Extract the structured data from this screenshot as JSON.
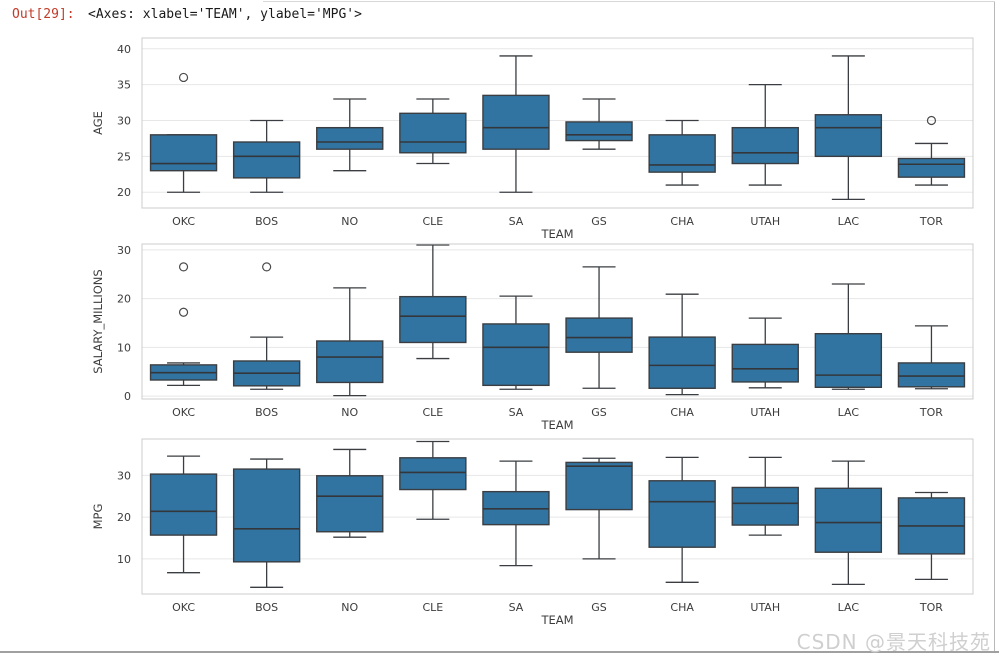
{
  "prompt": "Out[29]:",
  "repr": "<Axes: xlabel='TEAM', ylabel='MPG'>",
  "watermark": "CSDN @景天科技苑",
  "colors": {
    "box_fill": "#3274a1",
    "box_edge": "#3a3e42",
    "median": "#33373b",
    "whisker": "#3a3e42",
    "grid": "#e7e7e7",
    "axes_border": "#cccccc",
    "tick_text": "#3c3c3c",
    "prompt_red": "#c13b28",
    "watermark_gray": "#cfcfcf",
    "outlier_edge": "#4a4a4a"
  },
  "chart_data": [
    {
      "type": "box",
      "ylabel": "AGE",
      "xlabel": "TEAM",
      "categories": [
        "OKC",
        "BOS",
        "NO",
        "CLE",
        "SA",
        "GS",
        "CHA",
        "UTAH",
        "LAC",
        "TOR"
      ],
      "yticks": [
        20,
        25,
        30,
        35,
        40
      ],
      "ylim": [
        17.8,
        41.5
      ],
      "grid": true,
      "boxes": [
        {
          "team": "OKC",
          "whislo": 20,
          "q1": 23,
          "med": 24,
          "q3": 28,
          "whishi": 28,
          "outliers": [
            36
          ]
        },
        {
          "team": "BOS",
          "whislo": 20,
          "q1": 22,
          "med": 25,
          "q3": 27,
          "whishi": 30,
          "outliers": []
        },
        {
          "team": "NO",
          "whislo": 23,
          "q1": 26,
          "med": 27,
          "q3": 29,
          "whishi": 33,
          "outliers": []
        },
        {
          "team": "CLE",
          "whislo": 24,
          "q1": 25.5,
          "med": 27,
          "q3": 31,
          "whishi": 33,
          "outliers": []
        },
        {
          "team": "SA",
          "whislo": 20,
          "q1": 26,
          "med": 29,
          "q3": 33.5,
          "whishi": 39,
          "outliers": []
        },
        {
          "team": "GS",
          "whislo": 26,
          "q1": 27.2,
          "med": 28,
          "q3": 29.8,
          "whishi": 33,
          "outliers": []
        },
        {
          "team": "CHA",
          "whislo": 21,
          "q1": 22.8,
          "med": 23.8,
          "q3": 28,
          "whishi": 30,
          "outliers": []
        },
        {
          "team": "UTAH",
          "whislo": 21,
          "q1": 24,
          "med": 25.5,
          "q3": 29,
          "whishi": 35,
          "outliers": []
        },
        {
          "team": "LAC",
          "whislo": 19,
          "q1": 25,
          "med": 29,
          "q3": 30.8,
          "whishi": 39,
          "outliers": []
        },
        {
          "team": "TOR",
          "whislo": 21,
          "q1": 22.1,
          "med": 23.9,
          "q3": 24.7,
          "whishi": 26.8,
          "outliers": [
            30
          ]
        }
      ]
    },
    {
      "type": "box",
      "ylabel": "SALARY_MILLIONS",
      "xlabel": "TEAM",
      "categories": [
        "OKC",
        "BOS",
        "NO",
        "CLE",
        "SA",
        "GS",
        "CHA",
        "UTAH",
        "LAC",
        "TOR"
      ],
      "yticks": [
        0,
        10,
        20,
        30
      ],
      "ylim": [
        -0.6,
        31.2
      ],
      "grid": true,
      "boxes": [
        {
          "team": "OKC",
          "whislo": 2.2,
          "q1": 3.3,
          "med": 4.8,
          "q3": 6.4,
          "whishi": 6.8,
          "outliers": [
            26.5,
            17.2
          ]
        },
        {
          "team": "BOS",
          "whislo": 1.4,
          "q1": 2.1,
          "med": 4.7,
          "q3": 7.2,
          "whishi": 12.1,
          "outliers": [
            26.5
          ]
        },
        {
          "team": "NO",
          "whislo": 0.1,
          "q1": 2.8,
          "med": 8.0,
          "q3": 11.3,
          "whishi": 22.2,
          "outliers": []
        },
        {
          "team": "CLE",
          "whislo": 7.7,
          "q1": 11.0,
          "med": 16.4,
          "q3": 20.4,
          "whishi": 31.0,
          "outliers": []
        },
        {
          "team": "SA",
          "whislo": 1.4,
          "q1": 2.2,
          "med": 10.0,
          "q3": 14.8,
          "whishi": 20.5,
          "outliers": []
        },
        {
          "team": "GS",
          "whislo": 1.6,
          "q1": 9.0,
          "med": 12.0,
          "q3": 16.0,
          "whishi": 26.5,
          "outliers": []
        },
        {
          "team": "CHA",
          "whislo": 0.3,
          "q1": 1.6,
          "med": 6.3,
          "q3": 12.1,
          "whishi": 20.9,
          "outliers": []
        },
        {
          "team": "UTAH",
          "whislo": 1.7,
          "q1": 2.9,
          "med": 5.6,
          "q3": 10.6,
          "whishi": 16.0,
          "outliers": []
        },
        {
          "team": "LAC",
          "whislo": 1.4,
          "q1": 1.8,
          "med": 4.3,
          "q3": 12.8,
          "whishi": 23.0,
          "outliers": []
        },
        {
          "team": "TOR",
          "whislo": 1.5,
          "q1": 1.9,
          "med": 4.1,
          "q3": 6.8,
          "whishi": 14.4,
          "outliers": []
        }
      ]
    },
    {
      "type": "box",
      "ylabel": "MPG",
      "xlabel": "TEAM",
      "categories": [
        "OKC",
        "BOS",
        "NO",
        "CLE",
        "SA",
        "GS",
        "CHA",
        "UTAH",
        "LAC",
        "TOR"
      ],
      "yticks": [
        10,
        20,
        30
      ],
      "ylim": [
        1.6,
        38.7
      ],
      "grid": true,
      "boxes": [
        {
          "team": "OKC",
          "whislo": 6.7,
          "q1": 15.7,
          "med": 21.4,
          "q3": 30.3,
          "whishi": 34.6,
          "outliers": []
        },
        {
          "team": "BOS",
          "whislo": 3.2,
          "q1": 9.3,
          "med": 17.2,
          "q3": 31.5,
          "whishi": 33.9,
          "outliers": []
        },
        {
          "team": "NO",
          "whislo": 15.2,
          "q1": 16.5,
          "med": 25.0,
          "q3": 29.9,
          "whishi": 36.2,
          "outliers": []
        },
        {
          "team": "CLE",
          "whislo": 19.5,
          "q1": 26.6,
          "med": 30.7,
          "q3": 34.2,
          "whishi": 38.1,
          "outliers": []
        },
        {
          "team": "SA",
          "whislo": 8.4,
          "q1": 18.2,
          "med": 22.0,
          "q3": 26.1,
          "whishi": 33.4,
          "outliers": []
        },
        {
          "team": "GS",
          "whislo": 10.0,
          "q1": 21.8,
          "med": 32.2,
          "q3": 33.1,
          "whishi": 34.1,
          "outliers": []
        },
        {
          "team": "CHA",
          "whislo": 4.4,
          "q1": 12.8,
          "med": 23.7,
          "q3": 28.7,
          "whishi": 34.3,
          "outliers": []
        },
        {
          "team": "UTAH",
          "whislo": 15.7,
          "q1": 18.1,
          "med": 23.3,
          "q3": 27.1,
          "whishi": 34.3,
          "outliers": []
        },
        {
          "team": "LAC",
          "whislo": 3.9,
          "q1": 11.6,
          "med": 18.7,
          "q3": 26.9,
          "whishi": 33.4,
          "outliers": []
        },
        {
          "team": "TOR",
          "whislo": 5.1,
          "q1": 11.2,
          "med": 17.9,
          "q3": 24.6,
          "whishi": 25.9,
          "outliers": []
        }
      ]
    }
  ]
}
